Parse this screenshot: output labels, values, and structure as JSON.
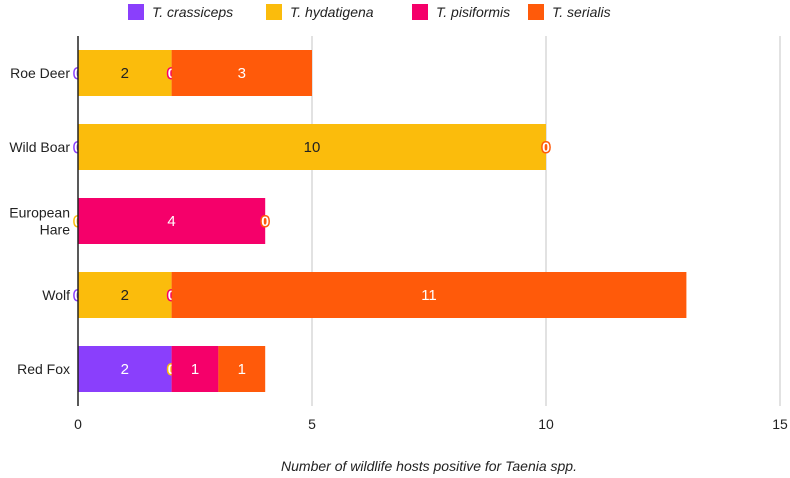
{
  "chart_data": {
    "type": "bar",
    "orientation": "horizontal",
    "stacked": true,
    "title": "",
    "xlabel": "Number of wildlife hosts positive for Taenia spp.",
    "ylabel": "",
    "xlim": [
      0,
      15
    ],
    "x_ticks": [
      0,
      5,
      10,
      15
    ],
    "grid": true,
    "legend_position": "top",
    "categories": [
      "Roe Deer",
      "Wild Boar",
      "European Hare",
      "Wolf",
      "Red Fox"
    ],
    "category_lines": [
      [
        "Roe Deer"
      ],
      [
        "Wild Boar"
      ],
      [
        "European",
        "Hare"
      ],
      [
        "Wolf"
      ],
      [
        "Red Fox"
      ]
    ],
    "series": [
      {
        "name": "T. crassiceps",
        "color": "#8a3ffc",
        "values": [
          0,
          0,
          null,
          0,
          2
        ]
      },
      {
        "name": "T. hydatigena",
        "color": "#fbbc0c",
        "values": [
          2,
          10,
          0,
          2,
          0
        ]
      },
      {
        "name": "T. pisiformis",
        "color": "#f5006a",
        "values": [
          0,
          null,
          4,
          0,
          1
        ]
      },
      {
        "name": "T. serialis",
        "color": "#ff5a0a",
        "values": [
          3,
          0,
          0,
          11,
          1
        ]
      }
    ]
  }
}
